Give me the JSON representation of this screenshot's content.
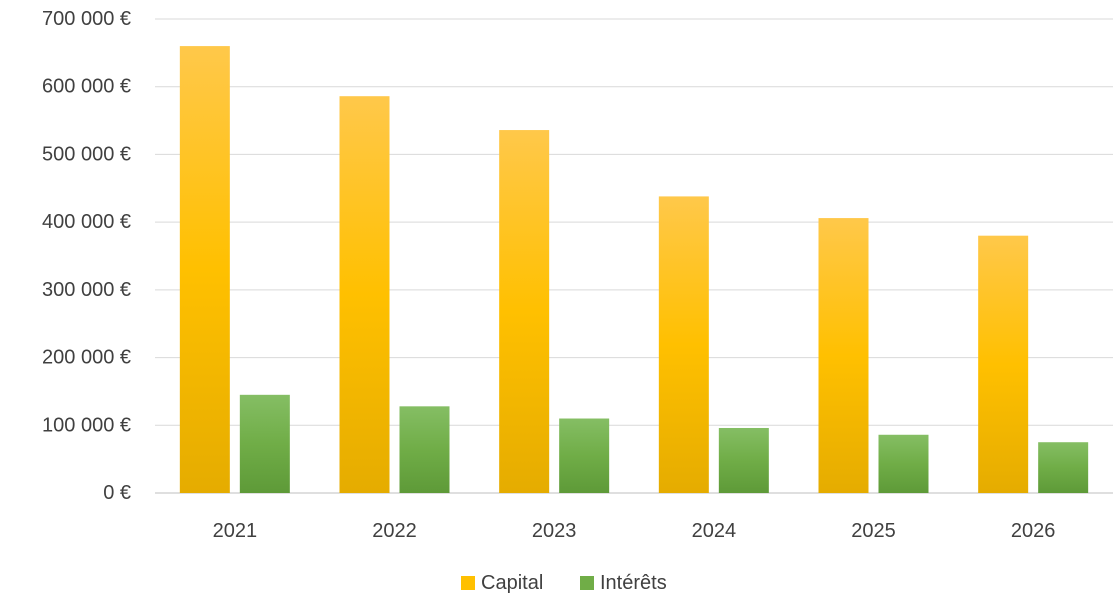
{
  "chart_data": {
    "type": "bar",
    "title": "",
    "xlabel": "",
    "ylabel": "",
    "categories": [
      "2021",
      "2022",
      "2023",
      "2024",
      "2025",
      "2026"
    ],
    "series": [
      {
        "name": "Capital",
        "values": [
          660000,
          586000,
          536000,
          438000,
          406000,
          380000
        ],
        "color": "#FFC000"
      },
      {
        "name": "Intérêts",
        "values": [
          145000,
          128000,
          110000,
          96000,
          86000,
          75000
        ],
        "color": "#70AD47"
      }
    ],
    "ylim": [
      0,
      700000
    ],
    "yticks": [
      0,
      100000,
      200000,
      300000,
      400000,
      500000,
      600000,
      700000
    ],
    "ytick_labels": [
      "0 €",
      "100 000 €",
      "200 000 €",
      "300 000 €",
      "400 000 €",
      "500 000 €",
      "600 000 €",
      "700 000 €"
    ],
    "grid": true,
    "legend_position": "bottom"
  }
}
